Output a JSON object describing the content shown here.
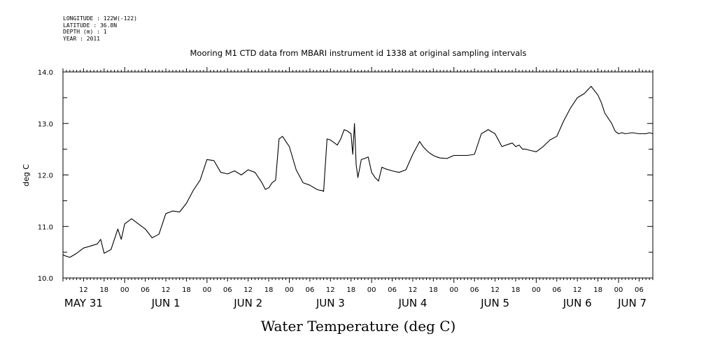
{
  "header": {
    "longitude": "LONGITUDE : 122W(-122)",
    "latitude": "LATITUDE : 36.8N",
    "depth": "DEPTH (m) : 1",
    "year": "YEAR : 2011"
  },
  "chart_data": {
    "type": "line",
    "title": "Mooring M1 CTD data from MBARI instrument id 1338 at original sampling intervals",
    "xlabel": "Water Temperature (deg C)",
    "ylabel": "deg C",
    "ylim": [
      10.0,
      14.0
    ],
    "yticks": [
      "10.0",
      "11.0",
      "12.0",
      "13.0",
      "14.0"
    ],
    "xlim": [
      "2011-05-31T06:00",
      "2011-06-07T10:00"
    ],
    "hour_ticks": [
      "12",
      "18",
      "00",
      "06",
      "12",
      "18",
      "00",
      "06",
      "12",
      "18",
      "00",
      "06",
      "12",
      "18",
      "00",
      "06",
      "12",
      "18",
      "00",
      "06",
      "12",
      "18",
      "00",
      "06",
      "12",
      "18",
      "00",
      "06"
    ],
    "day_labels": [
      "MAY 31",
      "JUN 1",
      "JUN 2",
      "JUN 3",
      "JUN 4",
      "JUN 5",
      "JUN 6",
      "JUN 7"
    ],
    "grid": false,
    "series": [
      {
        "color": "#000000",
        "x": [
          "05-31 06:00",
          "05-31 07:00",
          "05-31 08:00",
          "05-31 10:00",
          "05-31 12:00",
          "05-31 14:00",
          "05-31 16:00",
          "05-31 17:00",
          "05-31 18:00",
          "05-31 20:00",
          "05-31 22:00",
          "05-31 23:00",
          "06-01 00:00",
          "06-01 02:00",
          "06-01 04:00",
          "06-01 06:00",
          "06-01 08:00",
          "06-01 10:00",
          "06-01 12:00",
          "06-01 14:00",
          "06-01 16:00",
          "06-01 18:00",
          "06-01 20:00",
          "06-01 22:00",
          "06-02 00:00",
          "06-02 02:00",
          "06-02 04:00",
          "06-02 06:00",
          "06-02 08:00",
          "06-02 10:00",
          "06-02 12:00",
          "06-02 14:00",
          "06-02 16:00",
          "06-02 17:00",
          "06-02 18:00",
          "06-02 19:00",
          "06-02 20:00",
          "06-02 21:00",
          "06-02 22:00",
          "06-03 00:00",
          "06-03 02:00",
          "06-03 04:00",
          "06-03 06:00",
          "06-03 08:00",
          "06-03 09:00",
          "06-03 09:30",
          "06-03 10:00",
          "06-03 11:00",
          "06-03 12:00",
          "06-03 14:00",
          "06-03 15:00",
          "06-03 16:00",
          "06-03 17:00",
          "06-03 18:00",
          "06-03 18:30",
          "06-03 19:00",
          "06-03 19:30",
          "06-03 20:00",
          "06-03 21:00",
          "06-03 22:00",
          "06-03 23:00",
          "06-04 00:00",
          "06-04 01:00",
          "06-04 02:00",
          "06-04 03:00",
          "06-04 04:00",
          "06-04 06:00",
          "06-04 08:00",
          "06-04 10:00",
          "06-04 12:00",
          "06-04 14:00",
          "06-04 15:00",
          "06-04 16:00",
          "06-04 17:00",
          "06-04 18:00",
          "06-04 19:00",
          "06-04 20:00",
          "06-04 22:00",
          "06-05 00:00",
          "06-05 02:00",
          "06-05 04:00",
          "06-05 06:00",
          "06-05 08:00",
          "06-05 10:00",
          "06-05 12:00",
          "06-05 14:00",
          "06-05 16:00",
          "06-05 17:00",
          "06-05 18:00",
          "06-05 19:00",
          "06-05 20:00",
          "06-05 21:00",
          "06-05 22:00",
          "06-06 00:00",
          "06-06 02:00",
          "06-06 04:00",
          "06-06 06:00",
          "06-06 08:00",
          "06-06 10:00",
          "06-06 12:00",
          "06-06 14:00",
          "06-06 16:00",
          "06-06 18:00",
          "06-06 19:00",
          "06-06 20:00",
          "06-06 22:00",
          "06-06 23:00",
          "06-07 00:00",
          "06-07 01:00",
          "06-07 02:00",
          "06-07 04:00",
          "06-07 06:00",
          "06-07 08:00",
          "06-07 09:00",
          "06-07 10:00"
        ],
        "y": [
          10.45,
          10.42,
          10.4,
          10.48,
          10.58,
          10.62,
          10.66,
          10.75,
          10.48,
          10.55,
          10.95,
          10.75,
          11.05,
          11.15,
          11.05,
          10.95,
          10.78,
          10.85,
          11.25,
          11.3,
          11.28,
          11.45,
          11.7,
          11.9,
          12.3,
          12.28,
          12.05,
          12.02,
          12.08,
          12.0,
          12.1,
          12.05,
          11.85,
          11.72,
          11.75,
          11.85,
          11.9,
          12.7,
          12.75,
          12.55,
          12.1,
          11.85,
          11.8,
          11.72,
          11.7,
          11.7,
          11.68,
          12.7,
          12.68,
          12.58,
          12.7,
          12.88,
          12.85,
          12.8,
          12.4,
          13.0,
          12.2,
          11.95,
          12.3,
          12.32,
          12.35,
          12.05,
          11.95,
          11.88,
          12.15,
          12.12,
          12.08,
          12.05,
          12.1,
          12.4,
          12.65,
          12.55,
          12.48,
          12.42,
          12.38,
          12.35,
          12.33,
          12.32,
          12.38,
          12.38,
          12.38,
          12.4,
          12.8,
          12.88,
          12.8,
          12.55,
          12.6,
          12.62,
          12.55,
          12.58,
          12.5,
          12.5,
          12.48,
          12.45,
          12.55,
          12.68,
          12.75,
          13.05,
          13.3,
          13.5,
          13.58,
          13.72,
          13.55,
          13.4,
          13.2,
          13.0,
          12.85,
          12.8,
          12.82,
          12.8,
          12.82,
          12.8,
          12.8,
          12.82,
          12.8
        ]
      }
    ]
  }
}
